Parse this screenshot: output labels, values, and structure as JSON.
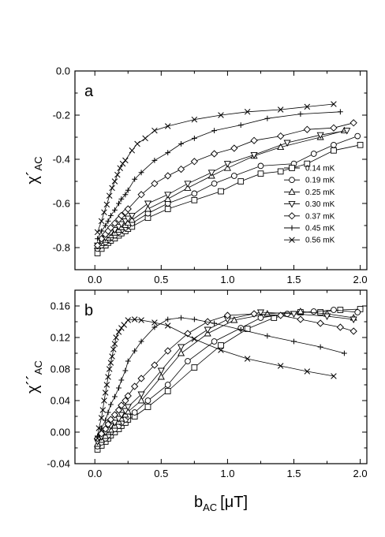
{
  "chart_data": [
    {
      "panel": "a",
      "type": "line",
      "ylabel": "χ´AC",
      "ylabel_main": "χ´",
      "ylabel_sub": "AC",
      "xlabel": "",
      "xlim": [
        -0.15,
        2.05
      ],
      "ylim": [
        -0.9,
        0.0
      ],
      "x_ticks": [
        "0.0",
        "0.5",
        "1.0",
        "1.5",
        "2.0"
      ],
      "y_ticks": [
        "0.0",
        "-0.2",
        "-0.4",
        "-0.6",
        "-0.8"
      ],
      "legend_position": "right",
      "series": [
        {
          "name": "0.14 mK",
          "marker": "square",
          "x": [
            0.02,
            0.05,
            0.08,
            0.1,
            0.12,
            0.15,
            0.18,
            0.2,
            0.23,
            0.25,
            0.28,
            0.4,
            0.55,
            0.75,
            0.95,
            1.1,
            1.25,
            1.4,
            1.6,
            1.8,
            2.0
          ],
          "y": [
            -0.825,
            -0.805,
            -0.79,
            -0.778,
            -0.768,
            -0.758,
            -0.745,
            -0.735,
            -0.725,
            -0.715,
            -0.705,
            -0.665,
            -0.625,
            -0.585,
            -0.545,
            -0.5,
            -0.465,
            -0.455,
            -0.42,
            -0.36,
            -0.335
          ]
        },
        {
          "name": "0.19 mK",
          "marker": "circle",
          "x": [
            0.02,
            0.05,
            0.08,
            0.1,
            0.12,
            0.15,
            0.18,
            0.2,
            0.23,
            0.25,
            0.28,
            0.4,
            0.55,
            0.75,
            0.9,
            1.05,
            1.25,
            1.5,
            1.65,
            1.8,
            1.98
          ],
          "y": [
            -0.805,
            -0.79,
            -0.775,
            -0.765,
            -0.755,
            -0.745,
            -0.73,
            -0.72,
            -0.71,
            -0.7,
            -0.69,
            -0.645,
            -0.6,
            -0.555,
            -0.51,
            -0.475,
            -0.43,
            -0.42,
            -0.375,
            -0.335,
            -0.295
          ]
        },
        {
          "name": "0.25 mK",
          "marker": "triangle-up",
          "x": [
            0.02,
            0.05,
            0.08,
            0.1,
            0.12,
            0.15,
            0.18,
            0.2,
            0.23,
            0.25,
            0.28,
            0.4,
            0.55,
            0.7,
            0.88,
            1.0,
            1.2,
            1.4,
            1.7,
            1.88
          ],
          "y": [
            -0.795,
            -0.78,
            -0.765,
            -0.755,
            -0.745,
            -0.733,
            -0.72,
            -0.708,
            -0.698,
            -0.688,
            -0.675,
            -0.625,
            -0.58,
            -0.53,
            -0.475,
            -0.44,
            -0.385,
            -0.345,
            -0.3,
            -0.27
          ]
        },
        {
          "name": "0.30 mK",
          "marker": "triangle-down",
          "x": [
            0.02,
            0.05,
            0.08,
            0.1,
            0.12,
            0.15,
            0.18,
            0.2,
            0.23,
            0.25,
            0.28,
            0.4,
            0.55,
            0.7,
            0.88,
            1.0,
            1.2,
            1.45,
            1.7,
            1.9
          ],
          "y": [
            -0.79,
            -0.772,
            -0.755,
            -0.743,
            -0.732,
            -0.72,
            -0.705,
            -0.693,
            -0.68,
            -0.668,
            -0.655,
            -0.6,
            -0.56,
            -0.51,
            -0.46,
            -0.42,
            -0.38,
            -0.325,
            -0.29,
            -0.27
          ]
        },
        {
          "name": "0.37 mK",
          "marker": "diamond",
          "x": [
            0.02,
            0.05,
            0.08,
            0.1,
            0.12,
            0.15,
            0.18,
            0.2,
            0.23,
            0.25,
            0.35,
            0.45,
            0.55,
            0.65,
            0.75,
            0.9,
            1.05,
            1.2,
            1.4,
            1.6,
            1.8,
            1.95
          ],
          "y": [
            -0.79,
            -0.76,
            -0.74,
            -0.725,
            -0.71,
            -0.69,
            -0.672,
            -0.655,
            -0.64,
            -0.625,
            -0.56,
            -0.51,
            -0.475,
            -0.445,
            -0.41,
            -0.375,
            -0.35,
            -0.315,
            -0.295,
            -0.265,
            -0.258,
            -0.235
          ]
        },
        {
          "name": "0.45 mK",
          "marker": "plus",
          "x": [
            0.02,
            0.05,
            0.08,
            0.1,
            0.12,
            0.15,
            0.18,
            0.2,
            0.23,
            0.25,
            0.3,
            0.35,
            0.45,
            0.55,
            0.65,
            0.75,
            0.9,
            1.1,
            1.3,
            1.55,
            1.85
          ],
          "y": [
            -0.76,
            -0.725,
            -0.7,
            -0.68,
            -0.655,
            -0.63,
            -0.6,
            -0.58,
            -0.56,
            -0.54,
            -0.49,
            -0.46,
            -0.405,
            -0.37,
            -0.33,
            -0.305,
            -0.27,
            -0.245,
            -0.215,
            -0.195,
            -0.185
          ]
        },
        {
          "name": "0.56 mK",
          "marker": "cross",
          "x": [
            0.02,
            0.05,
            0.07,
            0.09,
            0.11,
            0.13,
            0.15,
            0.17,
            0.19,
            0.21,
            0.23,
            0.28,
            0.32,
            0.38,
            0.45,
            0.55,
            0.75,
            0.95,
            1.15,
            1.4,
            1.6,
            1.8
          ],
          "y": [
            -0.73,
            -0.68,
            -0.64,
            -0.605,
            -0.565,
            -0.53,
            -0.5,
            -0.47,
            -0.44,
            -0.42,
            -0.405,
            -0.36,
            -0.33,
            -0.305,
            -0.27,
            -0.25,
            -0.22,
            -0.2,
            -0.185,
            -0.175,
            -0.162,
            -0.15
          ]
        }
      ]
    },
    {
      "panel": "b",
      "type": "line",
      "ylabel": "χ´´AC",
      "ylabel_main": "χ´´",
      "ylabel_sub": "AC",
      "xlabel": "bAC [μT]",
      "xlabel_main": "b",
      "xlabel_sub": "AC",
      "xlabel_unit": "[μT]",
      "xlim": [
        -0.15,
        2.05
      ],
      "ylim": [
        -0.04,
        0.18
      ],
      "x_ticks": [
        "0.0",
        "0.5",
        "1.0",
        "1.5",
        "2.0"
      ],
      "y_ticks": [
        "0.16",
        "0.12",
        "0.08",
        "0.04",
        "0.00",
        "-0.04"
      ],
      "series": [
        {
          "name": "0.14 mK",
          "marker": "square",
          "x": [
            0.02,
            0.05,
            0.08,
            0.1,
            0.12,
            0.15,
            0.18,
            0.2,
            0.23,
            0.25,
            0.3,
            0.4,
            0.55,
            0.75,
            0.95,
            1.15,
            1.35,
            1.55,
            1.7,
            1.85,
            2.0
          ],
          "y": [
            -0.022,
            -0.017,
            -0.012,
            -0.008,
            -0.004,
            0.0,
            0.004,
            0.008,
            0.012,
            0.016,
            0.02,
            0.032,
            0.052,
            0.082,
            0.11,
            0.131,
            0.145,
            0.152,
            0.152,
            0.155,
            0.156
          ]
        },
        {
          "name": "0.19 mK",
          "marker": "circle",
          "x": [
            0.02,
            0.05,
            0.08,
            0.1,
            0.12,
            0.15,
            0.18,
            0.2,
            0.23,
            0.25,
            0.3,
            0.4,
            0.55,
            0.7,
            0.9,
            1.1,
            1.25,
            1.45,
            1.65,
            1.8,
            1.98
          ],
          "y": [
            -0.018,
            -0.013,
            -0.008,
            -0.004,
            0.0,
            0.004,
            0.008,
            0.012,
            0.016,
            0.02,
            0.025,
            0.04,
            0.06,
            0.09,
            0.115,
            0.132,
            0.145,
            0.15,
            0.153,
            0.155,
            0.152
          ]
        },
        {
          "name": "0.25 mK",
          "marker": "triangle-up",
          "x": [
            0.02,
            0.05,
            0.08,
            0.1,
            0.12,
            0.15,
            0.18,
            0.2,
            0.23,
            0.25,
            0.35,
            0.5,
            0.65,
            0.85,
            1.05,
            1.3,
            1.55,
            1.75,
            1.95
          ],
          "y": [
            -0.015,
            -0.01,
            -0.005,
            0.0,
            0.003,
            0.008,
            0.013,
            0.017,
            0.022,
            0.026,
            0.04,
            0.07,
            0.1,
            0.125,
            0.142,
            0.15,
            0.153,
            0.15,
            0.145
          ]
        },
        {
          "name": "0.30 mK",
          "marker": "triangle-down",
          "x": [
            0.02,
            0.05,
            0.08,
            0.1,
            0.12,
            0.15,
            0.18,
            0.2,
            0.23,
            0.25,
            0.35,
            0.5,
            0.65,
            0.85,
            1.0,
            1.25,
            1.5,
            1.75,
            1.95
          ],
          "y": [
            -0.012,
            -0.006,
            0.0,
            0.003,
            0.008,
            0.012,
            0.017,
            0.022,
            0.027,
            0.032,
            0.048,
            0.078,
            0.108,
            0.13,
            0.143,
            0.152,
            0.15,
            0.147,
            0.143
          ]
        },
        {
          "name": "0.37 mK",
          "marker": "diamond",
          "x": [
            0.02,
            0.05,
            0.08,
            0.1,
            0.12,
            0.15,
            0.18,
            0.2,
            0.23,
            0.25,
            0.3,
            0.35,
            0.45,
            0.55,
            0.7,
            0.85,
            1.0,
            1.2,
            1.4,
            1.55,
            1.7,
            1.85,
            1.95
          ],
          "y": [
            -0.008,
            -0.002,
            0.004,
            0.01,
            0.016,
            0.022,
            0.028,
            0.034,
            0.04,
            0.046,
            0.058,
            0.068,
            0.085,
            0.103,
            0.125,
            0.14,
            0.148,
            0.15,
            0.148,
            0.143,
            0.138,
            0.133,
            0.128
          ]
        },
        {
          "name": "0.45 mK",
          "marker": "plus",
          "x": [
            0.02,
            0.05,
            0.08,
            0.1,
            0.12,
            0.15,
            0.18,
            0.2,
            0.23,
            0.25,
            0.3,
            0.35,
            0.45,
            0.55,
            0.65,
            0.75,
            0.9,
            1.1,
            1.3,
            1.5,
            1.7,
            1.88
          ],
          "y": [
            -0.005,
            0.005,
            0.015,
            0.025,
            0.035,
            0.045,
            0.056,
            0.066,
            0.078,
            0.09,
            0.103,
            0.115,
            0.133,
            0.143,
            0.145,
            0.143,
            0.138,
            0.13,
            0.122,
            0.115,
            0.108,
            0.1
          ]
        },
        {
          "name": "0.56 mK",
          "marker": "cross",
          "x": [
            0.02,
            0.03,
            0.05,
            0.06,
            0.07,
            0.08,
            0.09,
            0.1,
            0.11,
            0.12,
            0.13,
            0.14,
            0.15,
            0.16,
            0.18,
            0.2,
            0.22,
            0.25,
            0.3,
            0.35,
            0.45,
            0.55,
            0.75,
            0.95,
            1.15,
            1.4,
            1.6,
            1.8
          ],
          "y": [
            -0.008,
            0.005,
            0.018,
            0.028,
            0.04,
            0.05,
            0.06,
            0.07,
            0.08,
            0.088,
            0.096,
            0.105,
            0.112,
            0.12,
            0.127,
            0.132,
            0.136,
            0.142,
            0.143,
            0.142,
            0.139,
            0.135,
            0.118,
            0.104,
            0.093,
            0.084,
            0.077,
            0.071
          ]
        }
      ]
    }
  ]
}
